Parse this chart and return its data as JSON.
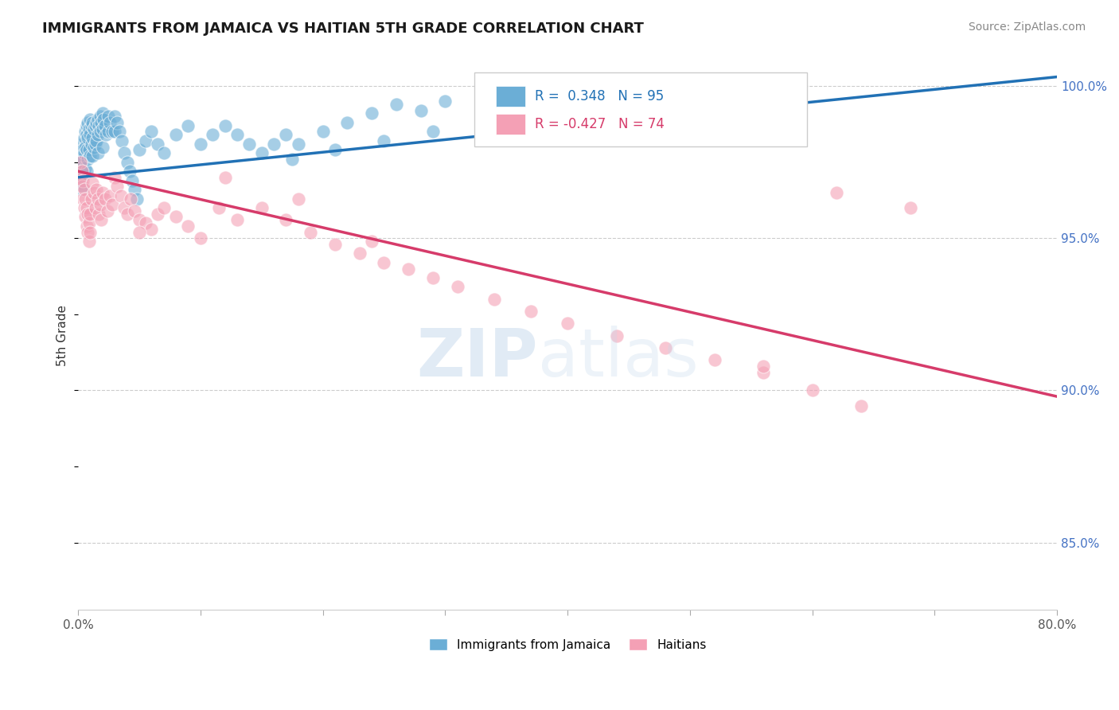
{
  "title": "IMMIGRANTS FROM JAMAICA VS HAITIAN 5TH GRADE CORRELATION CHART",
  "source_text": "Source: ZipAtlas.com",
  "ylabel": "5th Grade",
  "xlim": [
    0.0,
    0.8
  ],
  "ylim": [
    0.828,
    1.008
  ],
  "xticks": [
    0.0,
    0.1,
    0.2,
    0.3,
    0.4,
    0.5,
    0.6,
    0.7,
    0.8
  ],
  "xtick_labels": [
    "0.0%",
    "",
    "",
    "",
    "",
    "",
    "",
    "",
    "80.0%"
  ],
  "ytick_labels_right": [
    "100.0%",
    "95.0%",
    "90.0%",
    "85.0%"
  ],
  "ytick_vals_right": [
    1.0,
    0.95,
    0.9,
    0.85
  ],
  "blue_color": "#6baed6",
  "pink_color": "#f4a0b5",
  "blue_line_color": "#2171b5",
  "pink_line_color": "#d63b6a",
  "grid_color": "#cccccc",
  "legend_R1": "0.348",
  "legend_N1": "95",
  "legend_R2": "-0.427",
  "legend_N2": "74",
  "legend_label1": "Immigrants from Jamaica",
  "legend_label2": "Haitians",
  "blue_trend_x": [
    0.0,
    0.8
  ],
  "blue_trend_y": [
    0.97,
    1.003
  ],
  "pink_trend_x": [
    0.0,
    0.8
  ],
  "pink_trend_y": [
    0.972,
    0.898
  ],
  "blue_scatter_x": [
    0.001,
    0.002,
    0.002,
    0.003,
    0.003,
    0.003,
    0.003,
    0.004,
    0.004,
    0.004,
    0.005,
    0.005,
    0.005,
    0.006,
    0.006,
    0.006,
    0.007,
    0.007,
    0.007,
    0.007,
    0.008,
    0.008,
    0.008,
    0.009,
    0.009,
    0.01,
    0.01,
    0.01,
    0.011,
    0.011,
    0.012,
    0.012,
    0.012,
    0.013,
    0.013,
    0.014,
    0.014,
    0.015,
    0.015,
    0.016,
    0.016,
    0.016,
    0.017,
    0.018,
    0.018,
    0.019,
    0.02,
    0.02,
    0.02,
    0.021,
    0.022,
    0.023,
    0.025,
    0.025,
    0.026,
    0.028,
    0.03,
    0.03,
    0.032,
    0.034,
    0.036,
    0.038,
    0.04,
    0.042,
    0.044,
    0.046,
    0.048,
    0.05,
    0.055,
    0.06,
    0.065,
    0.07,
    0.08,
    0.09,
    0.1,
    0.11,
    0.12,
    0.13,
    0.14,
    0.15,
    0.16,
    0.17,
    0.18,
    0.2,
    0.22,
    0.24,
    0.26,
    0.28,
    0.3,
    0.33,
    0.36,
    0.175,
    0.21,
    0.25,
    0.29
  ],
  "blue_scatter_y": [
    0.971,
    0.975,
    0.968,
    0.981,
    0.976,
    0.973,
    0.966,
    0.979,
    0.972,
    0.967,
    0.983,
    0.978,
    0.971,
    0.985,
    0.98,
    0.973,
    0.987,
    0.984,
    0.979,
    0.972,
    0.988,
    0.983,
    0.976,
    0.986,
    0.979,
    0.989,
    0.984,
    0.977,
    0.987,
    0.981,
    0.988,
    0.983,
    0.977,
    0.986,
    0.98,
    0.987,
    0.981,
    0.988,
    0.982,
    0.989,
    0.984,
    0.978,
    0.987,
    0.99,
    0.985,
    0.988,
    0.991,
    0.986,
    0.98,
    0.989,
    0.987,
    0.984,
    0.99,
    0.985,
    0.988,
    0.985,
    0.99,
    0.985,
    0.988,
    0.985,
    0.982,
    0.978,
    0.975,
    0.972,
    0.969,
    0.966,
    0.963,
    0.979,
    0.982,
    0.985,
    0.981,
    0.978,
    0.984,
    0.987,
    0.981,
    0.984,
    0.987,
    0.984,
    0.981,
    0.978,
    0.981,
    0.984,
    0.981,
    0.985,
    0.988,
    0.991,
    0.994,
    0.992,
    0.995,
    0.998,
    1.001,
    0.976,
    0.979,
    0.982,
    0.985
  ],
  "pink_scatter_x": [
    0.001,
    0.002,
    0.003,
    0.003,
    0.004,
    0.004,
    0.005,
    0.005,
    0.006,
    0.006,
    0.007,
    0.007,
    0.008,
    0.008,
    0.009,
    0.009,
    0.01,
    0.01,
    0.011,
    0.012,
    0.013,
    0.014,
    0.015,
    0.016,
    0.017,
    0.018,
    0.019,
    0.02,
    0.022,
    0.024,
    0.026,
    0.028,
    0.03,
    0.032,
    0.035,
    0.038,
    0.04,
    0.043,
    0.046,
    0.05,
    0.055,
    0.06,
    0.065,
    0.07,
    0.08,
    0.09,
    0.1,
    0.115,
    0.13,
    0.15,
    0.17,
    0.19,
    0.21,
    0.23,
    0.25,
    0.27,
    0.29,
    0.31,
    0.34,
    0.37,
    0.4,
    0.44,
    0.48,
    0.52,
    0.56,
    0.6,
    0.64,
    0.68,
    0.56,
    0.62,
    0.05,
    0.12,
    0.18,
    0.24
  ],
  "pink_scatter_y": [
    0.97,
    0.975,
    0.972,
    0.967,
    0.969,
    0.963,
    0.966,
    0.96,
    0.963,
    0.957,
    0.96,
    0.954,
    0.958,
    0.952,
    0.955,
    0.949,
    0.958,
    0.952,
    0.963,
    0.968,
    0.965,
    0.96,
    0.966,
    0.963,
    0.958,
    0.961,
    0.956,
    0.965,
    0.963,
    0.959,
    0.964,
    0.961,
    0.97,
    0.967,
    0.964,
    0.96,
    0.958,
    0.963,
    0.959,
    0.956,
    0.955,
    0.953,
    0.958,
    0.96,
    0.957,
    0.954,
    0.95,
    0.96,
    0.956,
    0.96,
    0.956,
    0.952,
    0.948,
    0.945,
    0.942,
    0.94,
    0.937,
    0.934,
    0.93,
    0.926,
    0.922,
    0.918,
    0.914,
    0.91,
    0.906,
    0.9,
    0.895,
    0.96,
    0.908,
    0.965,
    0.952,
    0.97,
    0.963,
    0.949
  ],
  "figsize": [
    14.06,
    8.92
  ],
  "dpi": 100
}
